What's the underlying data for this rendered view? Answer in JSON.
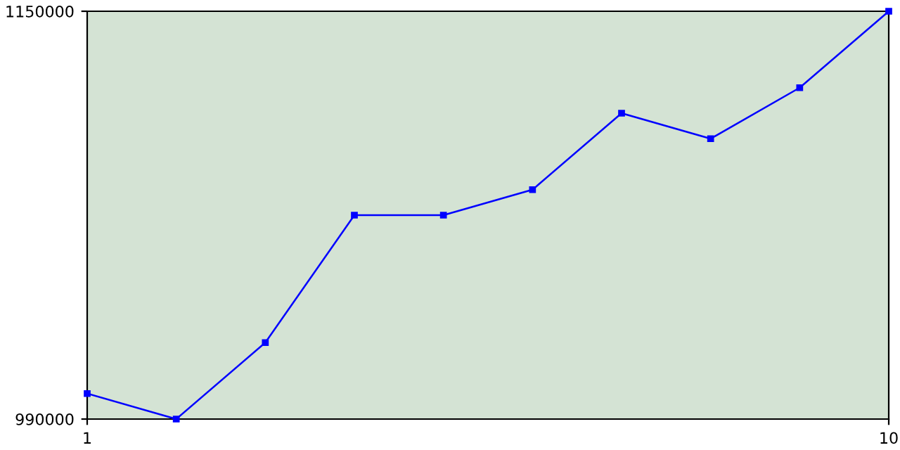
{
  "chart_data": {
    "type": "line",
    "x": [
      1,
      2,
      3,
      4,
      5,
      6,
      7,
      8,
      9,
      10
    ],
    "series": [
      {
        "color": "#0000ff",
        "values": [
          1000000,
          990000,
          1020000,
          1070000,
          1070000,
          1080000,
          1110000,
          1100000,
          1120000,
          1150000
        ]
      }
    ],
    "xlim": [
      1,
      10
    ],
    "xticks": [
      1,
      10
    ],
    "ylim": [
      990000,
      1150000
    ],
    "yticks": [
      990000,
      1150000
    ],
    "grid": false,
    "legend": false,
    "marker": "square",
    "line_style": "solid"
  }
}
